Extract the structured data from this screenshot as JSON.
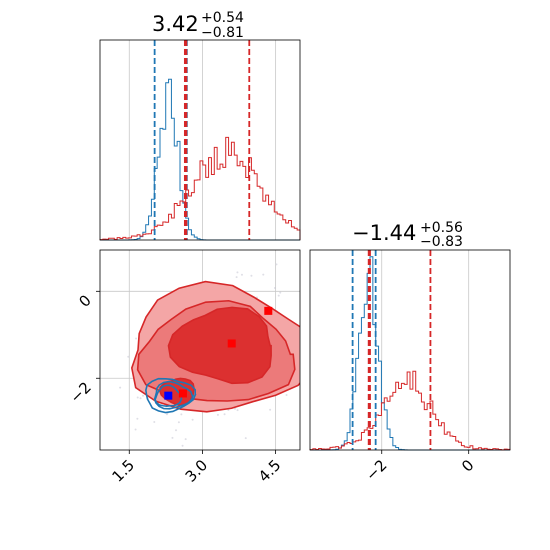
{
  "chart_data": {
    "type": "corner",
    "parameters": [
      {
        "range": [
          0.9,
          5.0
        ],
        "ticks": [
          "1.5",
          "3.0",
          "4.5"
        ],
        "tick_values": [
          1.5,
          3.0,
          4.5
        ],
        "title_value": "3.42",
        "title_plus": "+0.54",
        "title_minus": "−0.81"
      },
      {
        "range": [
          -3.65,
          0.95
        ],
        "ticks": [
          "−2",
          "0"
        ],
        "tick_values": [
          -2,
          0
        ],
        "title_value": "−1.44",
        "title_plus": "+0.56",
        "title_minus": "−0.83"
      }
    ],
    "series": [
      {
        "color": "#1f77b4",
        "hist_1": {
          "center": 2.3,
          "width": 0.2,
          "peak": 0.72,
          "seed": 7
        },
        "quantile_lines_1": [
          2.02,
          2.68
        ],
        "hist_2": {
          "center": -2.3,
          "width": 0.22,
          "peak": 0.88,
          "seed": 13
        },
        "quantile_lines_2": [
          -2.67,
          -2.14
        ],
        "point": [
          2.3,
          -2.4
        ],
        "contours": [
          {
            "cx": 2.32,
            "cy": -2.38,
            "rx": 0.5,
            "ry": 0.38
          },
          {
            "cx": 2.38,
            "cy": -2.4,
            "rx": 0.38,
            "ry": 0.3
          },
          {
            "cx": 2.3,
            "cy": -2.42,
            "rx": 0.26,
            "ry": 0.24
          }
        ]
      },
      {
        "color": "#d62728",
        "hist_1": {
          "center": 3.5,
          "width": 0.7,
          "peak": 0.42,
          "seed": 21
        },
        "quantile_lines_1": [
          2.64,
          2.67,
          3.96
        ],
        "hist_2": {
          "center": -1.45,
          "width": 0.55,
          "peak": 0.35,
          "seed": 33
        },
        "quantile_lines_2": [
          -2.3,
          -2.27,
          -0.88
        ],
        "points": [
          [
            3.6,
            -1.2
          ],
          [
            2.6,
            -2.35
          ],
          [
            4.35,
            -0.45
          ]
        ],
        "contours": [
          {
            "cx": 3.35,
            "cy": -1.35,
            "rx": 1.85,
            "ry": 1.45,
            "fill": "#f4a6a6"
          },
          {
            "cx": 3.3,
            "cy": -1.45,
            "rx": 1.55,
            "ry": 1.15,
            "fill": "#ec7a7a"
          },
          {
            "cx": 3.45,
            "cy": -1.25,
            "rx": 1.05,
            "ry": 0.85,
            "fill": "#dc3030"
          },
          {
            "cx": 2.5,
            "cy": -2.3,
            "rx": 0.35,
            "ry": 0.3,
            "fill": "#dc3030"
          }
        ]
      }
    ],
    "grid": true
  }
}
